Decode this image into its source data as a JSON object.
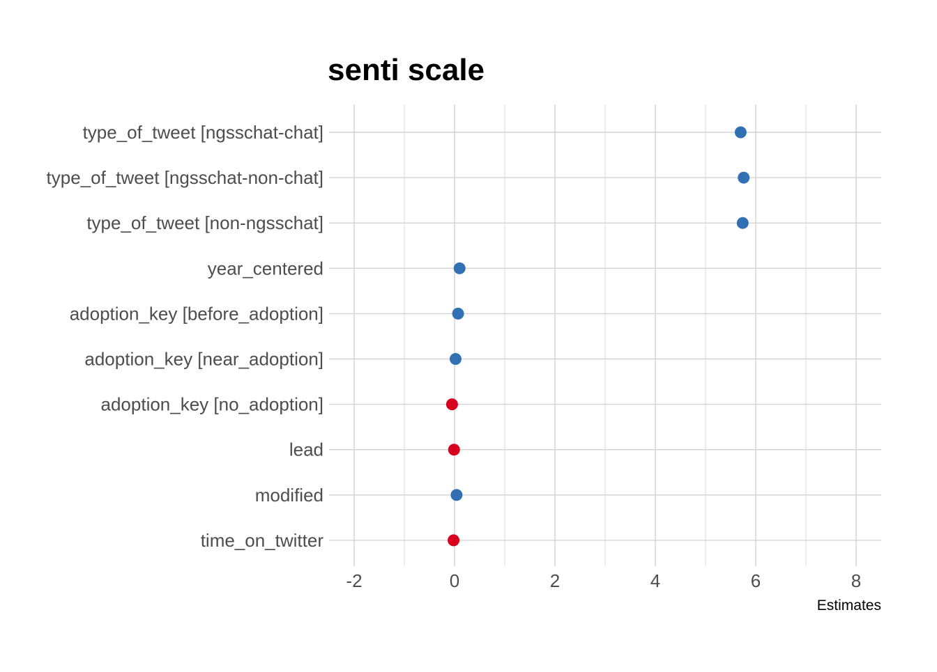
{
  "chart_data": {
    "type": "scatter",
    "subtype": "forest-plot",
    "title": "senti scale",
    "xlabel": "Estimates",
    "ylabel": "",
    "xlim": [
      -2.5,
      8.5
    ],
    "xticks": [
      -2,
      0,
      2,
      4,
      6,
      8
    ],
    "xtick_labels": [
      "-2",
      "0",
      "2",
      "4",
      "6",
      "8"
    ],
    "grid": true,
    "legend": "none",
    "colors": {
      "positive": "#3070b3",
      "negative": "#d7001f",
      "grid": "#d3d3d3",
      "text": "#4d4d4d"
    },
    "terms": [
      {
        "label": "type_of_tweet [ngsschat-chat]",
        "estimate": 5.7,
        "sign": "positive"
      },
      {
        "label": "type_of_tweet [ngsschat-non-chat]",
        "estimate": 5.76,
        "sign": "positive"
      },
      {
        "label": "type_of_tweet [non-ngsschat]",
        "estimate": 5.74,
        "sign": "positive"
      },
      {
        "label": "year_centered",
        "estimate": 0.1,
        "sign": "positive"
      },
      {
        "label": "adoption_key [before_adoption]",
        "estimate": 0.07,
        "sign": "positive"
      },
      {
        "label": "adoption_key [near_adoption]",
        "estimate": 0.02,
        "sign": "positive"
      },
      {
        "label": "adoption_key [no_adoption]",
        "estimate": -0.05,
        "sign": "negative"
      },
      {
        "label": "lead",
        "estimate": -0.01,
        "sign": "negative"
      },
      {
        "label": "modified",
        "estimate": 0.04,
        "sign": "positive"
      },
      {
        "label": "time_on_twitter",
        "estimate": -0.02,
        "sign": "negative"
      }
    ]
  }
}
